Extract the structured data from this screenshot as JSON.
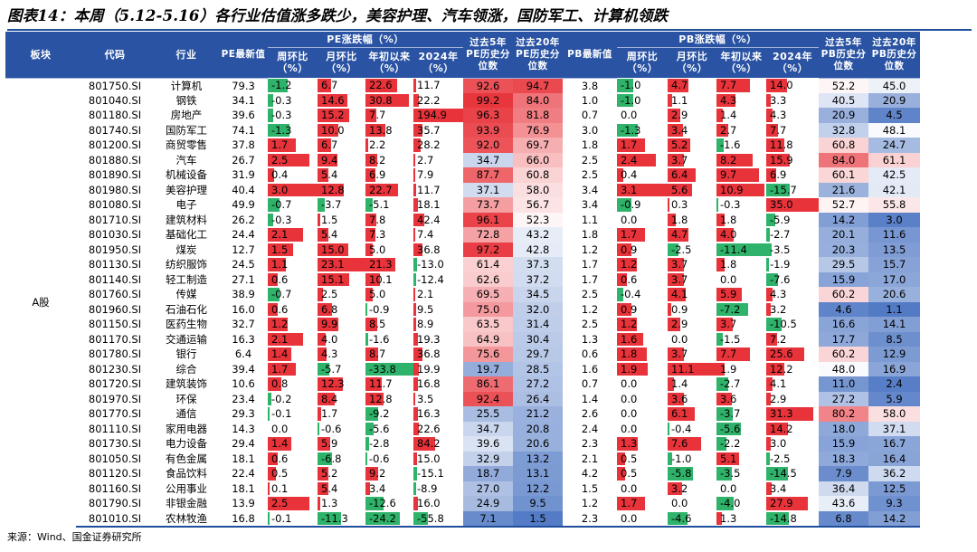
{
  "title": "图表14：本周（5.12-5.16）各行业估值涨多跌少，美容护理、汽车领涨，国防军工、计算机领跌",
  "source": "来源：Wind、国金证券研究所",
  "headers": {
    "block": "板块",
    "code": "代码",
    "industry": "行业",
    "pe_latest": "PE最新值",
    "pe_change_group": "PE涨跌幅（%）",
    "pe_pct5": "过去5年PE历史分位数",
    "pe_pct20": "过去20年PE历史分位数",
    "pb_latest": "PB最新值",
    "pb_change_group": "PB涨跌幅（%）",
    "pb_pct5": "过去5年PB历史分位数",
    "pb_pct20": "过去20年PB历史分位数",
    "wow": "周环比（%）",
    "mom": "月环比（%）",
    "ytd": "年初以来（%）",
    "y2024": "2024年（%）"
  },
  "block_label": "A股",
  "colors": {
    "header_bg": "#2a53a3",
    "positive": "#e8333a",
    "negative": "#2fb36a",
    "heat_high": "#e8333a",
    "heat_mid": "#ffffff",
    "heat_low": "#4f78c4"
  },
  "rows": [
    {
      "code": "801750.SI",
      "name": "计算机",
      "pe": "79.3",
      "pe_w": "-1.2",
      "pe_m": "6.7",
      "pe_y": "22.6",
      "pe_24": "11.7",
      "pe_p5": "92.6",
      "pe_p20": "94.7",
      "pb": "3.8",
      "pb_w": "-1.0",
      "pb_m": "4.7",
      "pb_y": "7.7",
      "pb_24": "14.0",
      "pb_p5": "52.2",
      "pb_p20": "45.0"
    },
    {
      "code": "801040.SI",
      "name": "钢铁",
      "pe": "34.1",
      "pe_w": "-0.3",
      "pe_m": "14.6",
      "pe_y": "30.8",
      "pe_24": "22.2",
      "pe_p5": "99.2",
      "pe_p20": "84.0",
      "pb": "1.0",
      "pb_w": "-1.0",
      "pb_m": "1.1",
      "pb_y": "4.3",
      "pb_24": "3.3",
      "pb_p5": "40.5",
      "pb_p20": "20.9"
    },
    {
      "code": "801180.SI",
      "name": "房地产",
      "pe": "39.6",
      "pe_w": "-0.3",
      "pe_m": "15.2",
      "pe_y": "7.7",
      "pe_24": "194.9",
      "pe_p5": "96.3",
      "pe_p20": "81.8",
      "pb": "0.7",
      "pb_w": "0.0",
      "pb_m": "2.9",
      "pb_y": "1.4",
      "pb_24": "4.3",
      "pb_p5": "20.9",
      "pb_p20": "4.5"
    },
    {
      "code": "801740.SI",
      "name": "国防军工",
      "pe": "74.1",
      "pe_w": "-1.3",
      "pe_m": "10.0",
      "pe_y": "13.8",
      "pe_24": "35.7",
      "pe_p5": "93.9",
      "pe_p20": "76.9",
      "pb": "3.0",
      "pb_w": "-1.3",
      "pb_m": "3.4",
      "pb_y": "2.7",
      "pb_24": "7.7",
      "pb_p5": "32.8",
      "pb_p20": "48.1"
    },
    {
      "code": "801200.SI",
      "name": "商贸零售",
      "pe": "37.8",
      "pe_w": "1.7",
      "pe_m": "6.7",
      "pe_y": "2.2",
      "pe_24": "28.2",
      "pe_p5": "92.0",
      "pe_p20": "69.7",
      "pb": "1.8",
      "pb_w": "1.7",
      "pb_m": "5.2",
      "pb_y": "-1.6",
      "pb_24": "11.8",
      "pb_p5": "60.8",
      "pb_p20": "24.7"
    },
    {
      "code": "801880.SI",
      "name": "汽车",
      "pe": "26.7",
      "pe_w": "2.5",
      "pe_m": "9.4",
      "pe_y": "8.2",
      "pe_24": "2.7",
      "pe_p5": "34.7",
      "pe_p20": "66.0",
      "pb": "2.5",
      "pb_w": "2.4",
      "pb_m": "3.7",
      "pb_y": "8.2",
      "pb_24": "15.9",
      "pb_p5": "84.0",
      "pb_p20": "61.1"
    },
    {
      "code": "801890.SI",
      "name": "机械设备",
      "pe": "31.9",
      "pe_w": "0.4",
      "pe_m": "5.4",
      "pe_y": "6.9",
      "pe_24": "7.9",
      "pe_p5": "87.7",
      "pe_p20": "60.8",
      "pb": "2.5",
      "pb_w": "0.4",
      "pb_m": "6.4",
      "pb_y": "9.7",
      "pb_24": "6.9",
      "pb_p5": "60.1",
      "pb_p20": "42.5"
    },
    {
      "code": "801980.SI",
      "name": "美容护理",
      "pe": "40.4",
      "pe_w": "3.0",
      "pe_m": "12.8",
      "pe_y": "22.7",
      "pe_24": "11.7",
      "pe_p5": "37.1",
      "pe_p20": "58.0",
      "pb": "3.4",
      "pb_w": "3.1",
      "pb_m": "5.6",
      "pb_y": "10.9",
      "pb_24": "-15.7",
      "pb_p5": "21.6",
      "pb_p20": "42.1"
    },
    {
      "code": "801080.SI",
      "name": "电子",
      "pe": "49.9",
      "pe_w": "-0.7",
      "pe_m": "-3.7",
      "pe_y": "-5.1",
      "pe_24": "18.1",
      "pe_p5": "73.7",
      "pe_p20": "56.7",
      "pb": "3.4",
      "pb_w": "-0.9",
      "pb_m": "0.3",
      "pb_y": "-0.3",
      "pb_24": "35.0",
      "pb_p5": "52.7",
      "pb_p20": "55.8"
    },
    {
      "code": "801710.SI",
      "name": "建筑材料",
      "pe": "26.2",
      "pe_w": "-0.3",
      "pe_m": "1.5",
      "pe_y": "7.8",
      "pe_24": "42.4",
      "pe_p5": "96.1",
      "pe_p20": "52.3",
      "pb": "1.1",
      "pb_w": "0.0",
      "pb_m": "1.8",
      "pb_y": "1.8",
      "pb_24": "-5.9",
      "pb_p5": "14.2",
      "pb_p20": "3.0"
    },
    {
      "code": "801030.SI",
      "name": "基础化工",
      "pe": "24.4",
      "pe_w": "2.1",
      "pe_m": "5.4",
      "pe_y": "7.3",
      "pe_24": "7.4",
      "pe_p5": "72.8",
      "pe_p20": "43.2",
      "pb": "1.8",
      "pb_w": "1.7",
      "pb_m": "4.7",
      "pb_y": "4.0",
      "pb_24": "-2.7",
      "pb_p5": "20.1",
      "pb_p20": "11.6"
    },
    {
      "code": "801950.SI",
      "name": "煤炭",
      "pe": "12.7",
      "pe_w": "1.5",
      "pe_m": "15.0",
      "pe_y": "5.0",
      "pe_24": "36.8",
      "pe_p5": "97.2",
      "pe_p20": "42.8",
      "pb": "1.2",
      "pb_w": "0.9",
      "pb_m": "-2.5",
      "pb_y": "-11.4",
      "pb_24": "-3.5",
      "pb_p5": "20.3",
      "pb_p20": "13.5"
    },
    {
      "code": "801130.SI",
      "name": "纺织服饰",
      "pe": "24.5",
      "pe_w": "1.1",
      "pe_m": "23.1",
      "pe_y": "21.3",
      "pe_24": "-13.0",
      "pe_p5": "61.4",
      "pe_p20": "37.3",
      "pb": "1.7",
      "pb_w": "1.2",
      "pb_m": "3.7",
      "pb_y": "1.8",
      "pb_24": "-1.9",
      "pb_p5": "29.5",
      "pb_p20": "15.7"
    },
    {
      "code": "801140.SI",
      "name": "轻工制造",
      "pe": "27.1",
      "pe_w": "0.6",
      "pe_m": "15.1",
      "pe_y": "10.1",
      "pe_24": "-12.4",
      "pe_p5": "62.6",
      "pe_p20": "37.2",
      "pb": "1.7",
      "pb_w": "0.6",
      "pb_m": "3.7",
      "pb_y": "0.0",
      "pb_24": "-7.6",
      "pb_p5": "15.9",
      "pb_p20": "17.0"
    },
    {
      "code": "801760.SI",
      "name": "传媒",
      "pe": "38.9",
      "pe_w": "-0.7",
      "pe_m": "2.5",
      "pe_y": "5.0",
      "pe_24": "2.1",
      "pe_p5": "69.5",
      "pe_p20": "34.5",
      "pb": "2.5",
      "pb_w": "-0.4",
      "pb_m": "4.1",
      "pb_y": "5.9",
      "pb_24": "4.3",
      "pb_p5": "60.2",
      "pb_p20": "20.6"
    },
    {
      "code": "801960.SI",
      "name": "石油石化",
      "pe": "16.0",
      "pe_w": "0.6",
      "pe_m": "6.8",
      "pe_y": "-0.9",
      "pe_24": "9.5",
      "pe_p5": "75.0",
      "pe_p20": "32.0",
      "pb": "1.2",
      "pb_w": "0.9",
      "pb_m": "0.9",
      "pb_y": "-7.2",
      "pb_24": "3.2",
      "pb_p5": "4.6",
      "pb_p20": "1.1"
    },
    {
      "code": "801150.SI",
      "name": "医药生物",
      "pe": "32.7",
      "pe_w": "1.2",
      "pe_m": "9.9",
      "pe_y": "8.5",
      "pe_24": "8.9",
      "pe_p5": "63.5",
      "pe_p20": "31.4",
      "pb": "2.5",
      "pb_w": "1.2",
      "pb_m": "2.9",
      "pb_y": "3.7",
      "pb_24": "-10.5",
      "pb_p5": "16.6",
      "pb_p20": "14.1"
    },
    {
      "code": "801170.SI",
      "name": "交通运输",
      "pe": "16.3",
      "pe_w": "2.1",
      "pe_m": "4.0",
      "pe_y": "-1.6",
      "pe_24": "19.3",
      "pe_p5": "64.9",
      "pe_p20": "30.4",
      "pb": "1.3",
      "pb_w": "1.6",
      "pb_m": "0.0",
      "pb_y": "-1.5",
      "pb_24": "7.2",
      "pb_p5": "17.7",
      "pb_p20": "8.5"
    },
    {
      "code": "801780.SI",
      "name": "银行",
      "pe": "6.4",
      "pe_w": "1.4",
      "pe_m": "4.3",
      "pe_y": "8.7",
      "pe_24": "36.8",
      "pe_p5": "75.6",
      "pe_p20": "29.7",
      "pb": "0.6",
      "pb_w": "1.8",
      "pb_m": "3.7",
      "pb_y": "7.7",
      "pb_24": "25.6",
      "pb_p5": "60.2",
      "pb_p20": "12.9"
    },
    {
      "code": "801230.SI",
      "name": "综合",
      "pe": "39.4",
      "pe_w": "1.7",
      "pe_m": "-5.7",
      "pe_y": "-33.8",
      "pe_24": "19.9",
      "pe_p5": "19.7",
      "pe_p20": "28.5",
      "pb": "1.6",
      "pb_w": "1.9",
      "pb_m": "11.1",
      "pb_y": "1.9",
      "pb_24": "12.2",
      "pb_p5": "48.0",
      "pb_p20": "16.9"
    },
    {
      "code": "801720.SI",
      "name": "建筑装饰",
      "pe": "10.6",
      "pe_w": "0.8",
      "pe_m": "12.3",
      "pe_y": "11.7",
      "pe_24": "16.8",
      "pe_p5": "86.1",
      "pe_p20": "27.2",
      "pb": "0.7",
      "pb_w": "0.0",
      "pb_m": "1.4",
      "pb_y": "-2.7",
      "pb_24": "4.1",
      "pb_p5": "11.0",
      "pb_p20": "2.4"
    },
    {
      "code": "801970.SI",
      "name": "环保",
      "pe": "23.4",
      "pe_w": "-0.2",
      "pe_m": "8.4",
      "pe_y": "12.8",
      "pe_24": "3.5",
      "pe_p5": "92.4",
      "pe_p20": "26.4",
      "pb": "1.4",
      "pb_w": "0.0",
      "pb_m": "3.6",
      "pb_y": "3.6",
      "pb_24": "2.9",
      "pb_p5": "27.2",
      "pb_p20": "5.9"
    },
    {
      "code": "801770.SI",
      "name": "通信",
      "pe": "29.3",
      "pe_w": "-0.1",
      "pe_m": "1.7",
      "pe_y": "-9.2",
      "pe_24": "16.3",
      "pe_p5": "25.5",
      "pe_p20": "21.2",
      "pb": "2.6",
      "pb_w": "0.0",
      "pb_m": "6.1",
      "pb_y": "-3.7",
      "pb_24": "31.3",
      "pb_p5": "80.2",
      "pb_p20": "58.0"
    },
    {
      "code": "801110.SI",
      "name": "家用电器",
      "pe": "14.3",
      "pe_w": "0.0",
      "pe_m": "-0.6",
      "pe_y": "-5.6",
      "pe_24": "22.6",
      "pe_p5": "34.7",
      "pe_p20": "20.8",
      "pb": "2.4",
      "pb_w": "0.0",
      "pb_m": "-0.4",
      "pb_y": "-5.6",
      "pb_24": "14.2",
      "pb_p5": "18.0",
      "pb_p20": "37.1"
    },
    {
      "code": "801730.SI",
      "name": "电力设备",
      "pe": "29.4",
      "pe_w": "1.4",
      "pe_m": "5.9",
      "pe_y": "-2.8",
      "pe_24": "84.2",
      "pe_p5": "39.6",
      "pe_p20": "20.6",
      "pb": "2.3",
      "pb_w": "1.3",
      "pb_m": "7.6",
      "pb_y": "-2.2",
      "pb_24": "3.0",
      "pb_p5": "15.9",
      "pb_p20": "16.7"
    },
    {
      "code": "801050.SI",
      "name": "有色金属",
      "pe": "18.1",
      "pe_w": "0.6",
      "pe_m": "-6.8",
      "pe_y": "-0.6",
      "pe_24": "15.0",
      "pe_p5": "32.9",
      "pe_p20": "13.2",
      "pb": "2.1",
      "pb_w": "0.5",
      "pb_m": "-1.0",
      "pb_y": "5.1",
      "pb_24": "-2.5",
      "pb_p5": "18.3",
      "pb_p20": "16.4"
    },
    {
      "code": "801120.SI",
      "name": "食品饮料",
      "pe": "22.4",
      "pe_w": "0.5",
      "pe_m": "5.2",
      "pe_y": "9.2",
      "pe_24": "-15.1",
      "pe_p5": "18.7",
      "pe_p20": "13.1",
      "pb": "4.2",
      "pb_w": "0.5",
      "pb_m": "-5.8",
      "pb_y": "-3.5",
      "pb_24": "-14.5",
      "pb_p5": "7.9",
      "pb_p20": "36.2"
    },
    {
      "code": "801160.SI",
      "name": "公用事业",
      "pe": "18.1",
      "pe_w": "0.1",
      "pe_m": "5.4",
      "pe_y": "3.4",
      "pe_24": "-8.9",
      "pe_p5": "27.0",
      "pe_p20": "12.2",
      "pb": "1.5",
      "pb_w": "0.0",
      "pb_m": "3.2",
      "pb_y": "0.0",
      "pb_24": "3.4",
      "pb_p5": "36.4",
      "pb_p20": "12.5"
    },
    {
      "code": "801790.SI",
      "name": "非银金融",
      "pe": "13.9",
      "pe_w": "2.5",
      "pe_m": "1.3",
      "pe_y": "-12.6",
      "pe_24": "16.0",
      "pe_p5": "24.9",
      "pe_p20": "9.5",
      "pb": "1.2",
      "pb_w": "1.7",
      "pb_m": "0.0",
      "pb_y": "-4.0",
      "pb_24": "27.9",
      "pb_p5": "43.6",
      "pb_p20": "9.3"
    },
    {
      "code": "801010.SI",
      "name": "农林牧渔",
      "pe": "16.8",
      "pe_w": "-0.1",
      "pe_m": "-11.3",
      "pe_y": "-24.2",
      "pe_24": "-55.8",
      "pe_p5": "7.1",
      "pe_p20": "1.5",
      "pb": "2.3",
      "pb_w": "0.0",
      "pb_m": "-4.6",
      "pb_y": "1.3",
      "pb_24": "-14.8",
      "pb_p5": "6.8",
      "pb_p20": "14.2"
    }
  ]
}
